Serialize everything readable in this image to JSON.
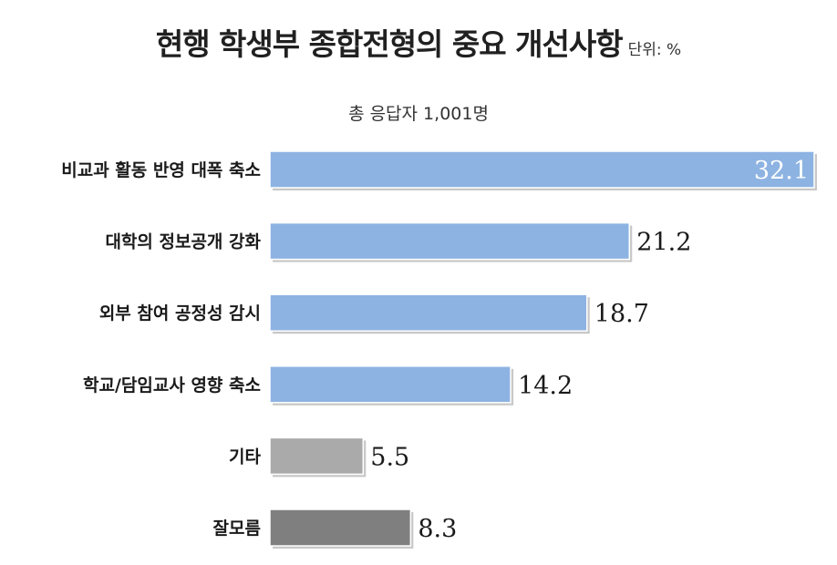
{
  "title": "현행 학생부 종합전형의 중요 개선사항",
  "unit": "단위: %",
  "subtitle": "총 응답자 1,001명",
  "colors": {
    "primary": "#8db3e2",
    "other": "#aaaaaa",
    "dontknow": "#7f7f7f",
    "shadow": "#c8c8c8"
  },
  "chart_data": {
    "type": "bar",
    "orientation": "horizontal",
    "categories": [
      "비교과 활동 반영 대폭 축소",
      "대학의 정보공개 강화",
      "외부 참여 공정성 감시",
      "학교/담임교사 영향 축소",
      "기타",
      "잘모름"
    ],
    "values": [
      32.1,
      21.2,
      18.7,
      14.2,
      5.5,
      8.3
    ],
    "value_labels": [
      "32.1",
      "21.2",
      "18.7",
      "14.2",
      "5.5",
      "8.3"
    ],
    "bar_colors": [
      "#8db3e2",
      "#8db3e2",
      "#8db3e2",
      "#8db3e2",
      "#aaaaaa",
      "#7f7f7f"
    ],
    "xlim": [
      0,
      32.1
    ],
    "grid": false,
    "legend": "none"
  }
}
